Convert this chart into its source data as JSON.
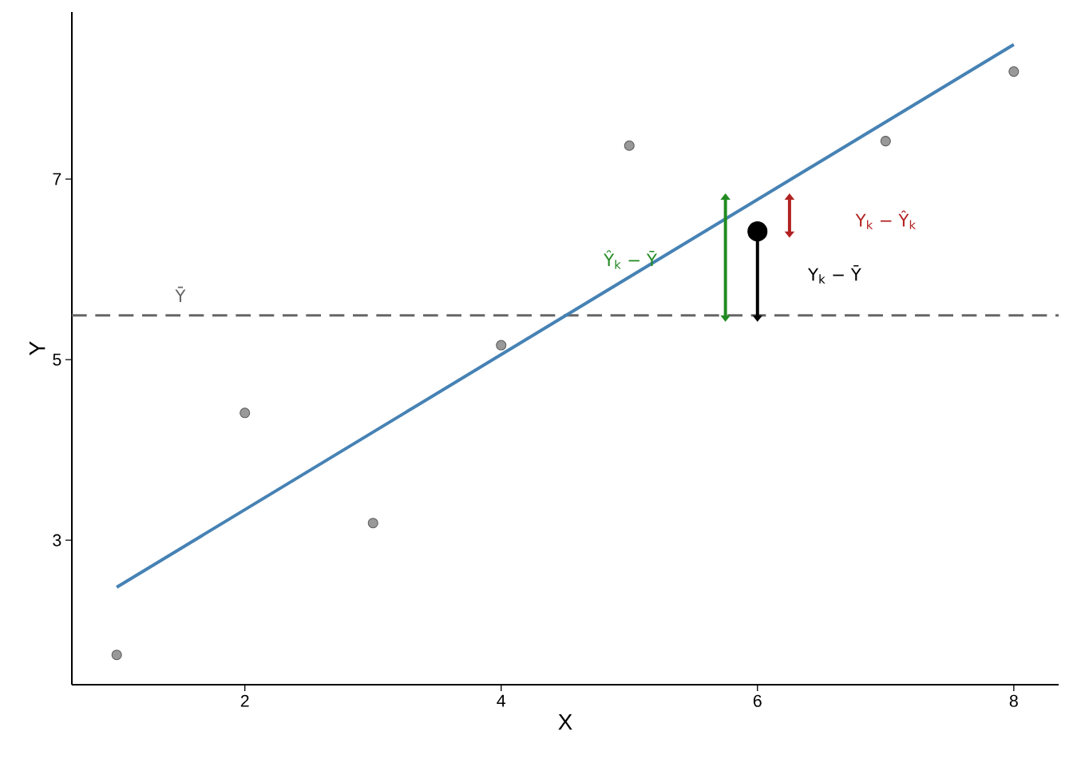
{
  "chart_data": {
    "type": "scatter",
    "xlabel": "X",
    "ylabel": "Y",
    "xlim": [
      0.65,
      8.35
    ],
    "ylim": [
      1.4,
      8.85
    ],
    "xticks": [
      2,
      4,
      6,
      8
    ],
    "yticks": [
      3,
      5,
      7
    ],
    "marker": "circle",
    "series": [
      {
        "type": "line",
        "marker": "none",
        "color": "#4682b4",
        "x": [
          1,
          8
        ],
        "values": [
          2.48,
          8.49
        ]
      },
      {
        "color": "#999999",
        "x": [
          1,
          2,
          3,
          4,
          5,
          6,
          7,
          8
        ],
        "values": [
          1.73,
          4.41,
          3.19,
          5.16,
          7.37,
          null,
          7.42,
          8.19
        ]
      },
      {
        "marker": "triangle",
        "color": "#228b22",
        "x": [
          5.75
        ],
        "values": [
          6.77
        ],
        "errors": [
          [
            5.49,
            6.77
          ]
        ]
      },
      {
        "marker": "triangle",
        "color": "#b22222",
        "x": [
          6.25
        ],
        "values": [
          6.77
        ],
        "errors": [
          [
            6.42,
            6.77
          ]
        ]
      },
      {
        "color": "#000000",
        "x": [
          6
        ],
        "values": [
          6.42
        ],
        "errors": [
          [
            5.49,
            6.42
          ]
        ]
      }
    ],
    "ref_lines": [
      {
        "axis": "y",
        "value": 5.49,
        "label": "Ȳ",
        "color": "#666666",
        "line_style": "dashed"
      }
    ],
    "annotations": [
      "Ŷ$_{k}$ − Ȳ",
      "Y$_{k}$ − Ŷ$_{k}$",
      "Y$_{k}$ − Ȳ"
    ]
  }
}
